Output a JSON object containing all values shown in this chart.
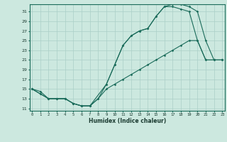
{
  "xlabel": "Humidex (Indice chaleur)",
  "bg_color": "#cce8df",
  "grid_color": "#aacfc7",
  "line_color": "#1a6b5a",
  "yticks": [
    11,
    13,
    15,
    17,
    19,
    21,
    23,
    25,
    27,
    29,
    31
  ],
  "xticks": [
    0,
    1,
    2,
    3,
    4,
    5,
    6,
    7,
    8,
    9,
    10,
    11,
    12,
    13,
    14,
    15,
    16,
    17,
    18,
    19,
    20,
    21,
    22,
    23
  ],
  "line1_x": [
    0,
    1,
    2,
    3,
    4,
    5,
    6,
    7,
    8,
    9,
    10,
    11,
    12,
    13,
    14,
    15,
    16,
    17,
    18,
    19,
    20,
    21,
    22,
    23
  ],
  "line1_y": [
    15,
    14,
    13,
    13,
    13,
    12,
    11.5,
    11.5,
    13,
    16,
    20,
    24,
    26,
    27,
    27.5,
    30,
    32,
    32.5,
    32.5,
    32,
    31,
    25,
    21,
    21
  ],
  "line2_x": [
    0,
    1,
    2,
    3,
    4,
    5,
    6,
    7,
    9,
    10,
    11,
    12,
    13,
    14,
    15,
    16,
    17,
    18,
    19,
    20,
    21,
    22,
    23
  ],
  "line2_y": [
    15,
    14,
    13,
    13,
    13,
    12,
    11.5,
    11.5,
    16,
    20,
    24,
    26,
    27,
    27.5,
    30,
    32,
    32,
    31.5,
    31,
    25,
    21,
    21,
    21
  ],
  "line3_x": [
    0,
    1,
    2,
    3,
    4,
    5,
    6,
    7,
    8,
    9,
    10,
    11,
    12,
    13,
    14,
    15,
    16,
    17,
    18,
    19,
    20,
    21,
    22,
    23
  ],
  "line3_y": [
    15,
    14.5,
    13,
    13,
    13,
    12,
    11.5,
    11.5,
    13,
    15,
    16,
    17,
    18,
    19,
    20,
    21,
    22,
    23,
    24,
    25,
    25,
    21,
    21,
    21
  ],
  "xlim": [
    -0.3,
    23.3
  ],
  "ylim": [
    10.5,
    32.5
  ]
}
